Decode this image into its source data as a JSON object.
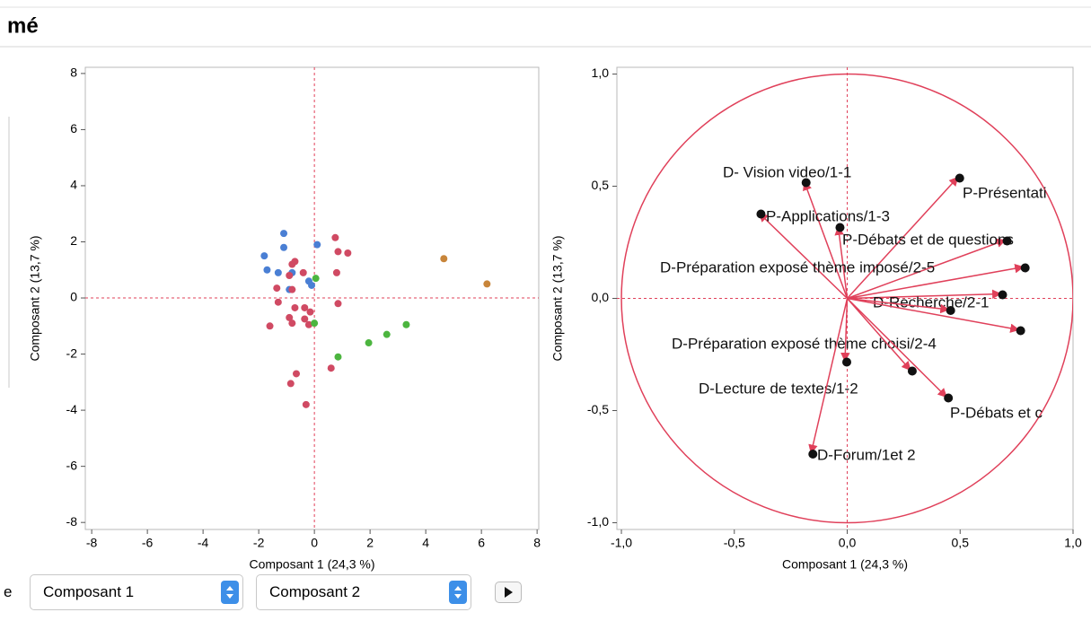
{
  "header": {
    "title": "mé"
  },
  "chart_data": [
    {
      "type": "scatter",
      "xlabel": "Composant 1  (24,3 %)",
      "ylabel": "Composant 2  (13,7 %)",
      "xlim": [
        -8.23,
        8.06
      ],
      "ylim": [
        -8.25,
        8.22
      ],
      "xticks": [
        -8,
        -6,
        -4,
        -2,
        0,
        2,
        4,
        6,
        8
      ],
      "yticks": [
        -8,
        -6,
        -4,
        -2,
        0,
        2,
        4,
        6,
        8
      ],
      "reference_lines": true,
      "series": [
        {
          "color": "#4a7fd4",
          "x": [
            -1.1,
            -1.1,
            -1.8,
            0.1,
            -1.7,
            -1.3,
            -0.8,
            -0.2,
            -0.1,
            -0.9
          ],
          "values": [
            2.3,
            1.8,
            1.5,
            1.9,
            1.0,
            0.9,
            0.9,
            0.6,
            0.45,
            0.3
          ]
        },
        {
          "color": "#d04a63",
          "x": [
            0.75,
            1.2,
            0.85,
            -0.7,
            -0.8,
            -0.4,
            0.8,
            -0.9,
            -1.35,
            -0.8,
            -1.3,
            -0.7,
            -0.35,
            -0.15,
            0.85,
            -0.9,
            -0.8,
            -0.35,
            -0.2,
            -1.6,
            0.6,
            -0.65,
            -0.85,
            -0.3
          ],
          "values": [
            2.15,
            1.6,
            1.65,
            1.3,
            1.2,
            0.9,
            0.9,
            0.8,
            0.35,
            0.3,
            -0.15,
            -0.35,
            -0.35,
            -0.5,
            -0.2,
            -0.7,
            -0.9,
            -0.75,
            -0.95,
            -1.0,
            -2.5,
            -2.7,
            -3.05,
            -3.8
          ]
        },
        {
          "color": "#4cb53f",
          "x": [
            0.05,
            0.0,
            3.3,
            2.6,
            1.95,
            0.85
          ],
          "values": [
            0.7,
            -0.9,
            -0.95,
            -1.3,
            -1.6,
            -2.1
          ]
        },
        {
          "color": "#c8853a",
          "x": [
            4.65,
            6.2
          ],
          "values": [
            1.4,
            0.5
          ]
        }
      ]
    },
    {
      "type": "vector",
      "xlabel": "Composant 1  (24,3 %)",
      "ylabel": "Composant 2  (13,7 %)",
      "xlim": [
        -1.02,
        1.0
      ],
      "ylim": [
        -1.03,
        1.03
      ],
      "xticks": [
        {
          "value": -1.0,
          "label": "-1,0"
        },
        {
          "value": -0.5,
          "label": "-0,5"
        },
        {
          "value": 0.0,
          "label": "0,0"
        },
        {
          "value": 0.5,
          "label": "0,5"
        },
        {
          "value": 1.0,
          "label": "1,0"
        }
      ],
      "yticks": [
        {
          "value": -1.0,
          "label": "-1,0"
        },
        {
          "value": -0.5,
          "label": "-0,5"
        },
        {
          "value": 0.0,
          "label": "0,0"
        },
        {
          "value": 0.5,
          "label": "0,5"
        },
        {
          "value": 1.0,
          "label": "1,0"
        }
      ],
      "reference_lines": true,
      "unit_circle": true,
      "series": [
        {
          "color": "#e0405a",
          "x": [
            -0.19,
            0.49,
            -0.39,
            -0.04,
            0.7,
            0.78,
            0.68,
            0.45,
            0.76,
            -0.01,
            0.28,
            0.44,
            -0.16
          ],
          "values": [
            0.52,
            0.54,
            0.38,
            0.32,
            0.26,
            0.14,
            0.02,
            -0.05,
            -0.14,
            -0.28,
            -0.32,
            -0.44,
            -0.69
          ],
          "labels": [
            "D- Vision video/1-1",
            "P-Présentati",
            "P-Applications/1-3",
            null,
            "P-Débats et de questions",
            "D-Préparation exposé thème imposé/2-5",
            "D-Recherche/2-1",
            null,
            "D-Préparation exposé thème choisi/2-4",
            null,
            "D-Lecture de textes/1-2",
            "P-Débats et c",
            "D-Forum/1et 2"
          ]
        }
      ]
    }
  ],
  "controls": {
    "left_label": "e",
    "select1": "Composant 1",
    "select2": "Composant 2"
  }
}
